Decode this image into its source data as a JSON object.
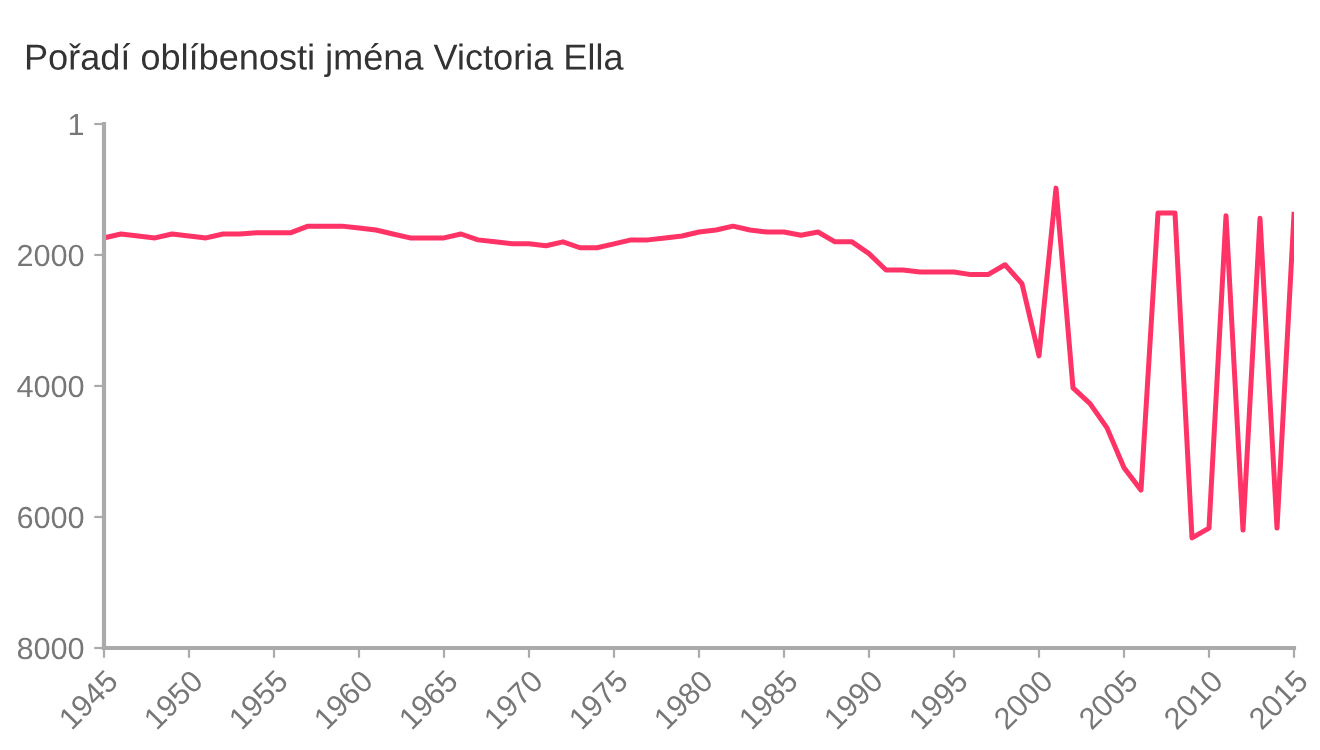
{
  "chart_data": {
    "type": "line",
    "title": "Pořadí oblíbenosti jména Victoria Ella",
    "x": [
      1945,
      1946,
      1947,
      1948,
      1949,
      1950,
      1951,
      1952,
      1953,
      1954,
      1955,
      1956,
      1957,
      1958,
      1959,
      1960,
      1961,
      1962,
      1963,
      1964,
      1965,
      1966,
      1967,
      1968,
      1969,
      1970,
      1971,
      1972,
      1973,
      1974,
      1975,
      1976,
      1977,
      1978,
      1979,
      1980,
      1981,
      1982,
      1983,
      1984,
      1985,
      1986,
      1987,
      1988,
      1989,
      1990,
      1991,
      1992,
      1993,
      1994,
      1995,
      1996,
      1997,
      1998,
      1999,
      2000,
      2001,
      2002,
      2003,
      2004,
      2005,
      2006,
      2007,
      2008,
      2009,
      2010,
      2011,
      2012,
      2013,
      2014,
      2015
    ],
    "series": [
      {
        "color": "#ff3366",
        "values": [
          1740,
          1680,
          1710,
          1740,
          1680,
          1710,
          1740,
          1680,
          1680,
          1660,
          1660,
          1660,
          1560,
          1560,
          1560,
          1590,
          1620,
          1680,
          1740,
          1740,
          1740,
          1680,
          1770,
          1800,
          1830,
          1830,
          1860,
          1800,
          1890,
          1890,
          1830,
          1770,
          1770,
          1740,
          1710,
          1650,
          1620,
          1560,
          1620,
          1650,
          1650,
          1700,
          1650,
          1800,
          1800,
          1980,
          2230,
          2230,
          2260,
          2260,
          2260,
          2300,
          2300,
          2150,
          2440,
          3540,
          980,
          4030,
          4270,
          4640,
          5250,
          5590,
          1360,
          1360,
          6320,
          6170,
          1400,
          6200,
          1440,
          6170,
          1380
        ]
      }
    ],
    "xlim": [
      1945,
      2015
    ],
    "xticks": [
      1945,
      1950,
      1955,
      1960,
      1965,
      1970,
      1975,
      1980,
      1985,
      1990,
      1995,
      2000,
      2005,
      2010,
      2015
    ],
    "ylim": [
      8000,
      1
    ],
    "yticks": [
      1,
      2000,
      4000,
      6000,
      8000
    ],
    "grid": false,
    "legend": false
  }
}
